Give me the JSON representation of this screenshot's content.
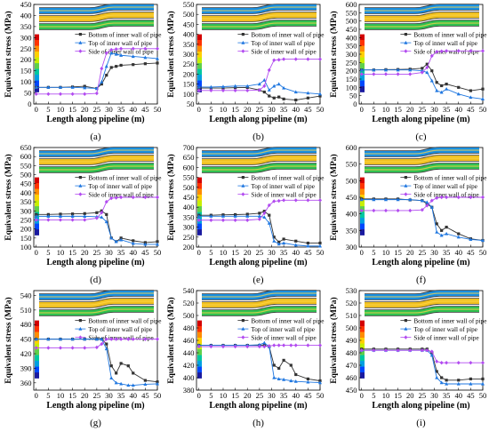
{
  "figure": {
    "series_names": [
      "Bottom of inner wall of pipe",
      "Top of inner wall of pipe",
      "Side of inner wall of pipe"
    ],
    "series_colors": [
      "#333333",
      "#1f77e0",
      "#b24bf0"
    ],
    "colorbar": [
      "#d40000",
      "#ff3300",
      "#ff8c00",
      "#ffd000",
      "#c8ef00",
      "#5fd04a",
      "#00c8a0",
      "#00a0e0",
      "#0048ff",
      "#1a1aa0"
    ]
  },
  "chart_data": [
    {
      "type": "line",
      "panel_label": "(a)",
      "xlabel": "Length along pipeline (m)",
      "ylabel": "Equivalent stress (MPa)",
      "xlim": [
        -1,
        50
      ],
      "ylim": [
        0,
        450
      ],
      "xticks": [
        0,
        5,
        10,
        15,
        20,
        25,
        30,
        35,
        40,
        45,
        50
      ],
      "yticks": [
        0,
        50,
        100,
        150,
        200,
        250,
        300,
        350,
        400,
        450
      ],
      "x": [
        0,
        5,
        10,
        15,
        20,
        25,
        27,
        29,
        31,
        33,
        35,
        40,
        45,
        50
      ],
      "series": [
        {
          "name": "Bottom of inner wall of pipe",
          "values": [
            75,
            75,
            75,
            77,
            80,
            70,
            90,
            130,
            165,
            170,
            175,
            178,
            182,
            185
          ]
        },
        {
          "name": "Top of inner wall of pipe",
          "values": [
            75,
            75,
            75,
            75,
            73,
            70,
            100,
            170,
            230,
            225,
            220,
            215,
            210,
            205
          ]
        },
        {
          "name": "Side of inner wall of pipe",
          "values": [
            45,
            45,
            45,
            45,
            45,
            48,
            160,
            230,
            245,
            248,
            250,
            250,
            250,
            250
          ]
        }
      ]
    },
    {
      "type": "line",
      "panel_label": "(b)",
      "xlabel": "Length along pipeline (m)",
      "ylabel": "Equivalent stress (MPa)",
      "xlim": [
        -1,
        50
      ],
      "ylim": [
        50,
        550
      ],
      "xticks": [
        0,
        5,
        10,
        15,
        20,
        25,
        30,
        35,
        40,
        45,
        50
      ],
      "yticks": [
        50,
        100,
        150,
        200,
        250,
        300,
        350,
        400,
        450,
        500,
        550
      ],
      "x": [
        0,
        5,
        10,
        15,
        20,
        25,
        27,
        29,
        31,
        33,
        35,
        40,
        45,
        50
      ],
      "series": [
        {
          "name": "Bottom of inner wall of pipe",
          "values": [
            130,
            130,
            130,
            132,
            133,
            120,
            110,
            90,
            80,
            85,
            75,
            70,
            80,
            90
          ]
        },
        {
          "name": "Top of inner wall of pipe",
          "values": [
            135,
            135,
            137,
            140,
            140,
            150,
            170,
            120,
            140,
            150,
            130,
            110,
            105,
            100
          ]
        },
        {
          "name": "Side of inner wall of pipe",
          "values": [
            118,
            118,
            118,
            118,
            118,
            120,
            140,
            220,
            270,
            272,
            275,
            275,
            275,
            275
          ]
        }
      ]
    },
    {
      "type": "line",
      "panel_label": "(c)",
      "xlabel": "Length along pipeline (m)",
      "ylabel": "Equivalent stress (MPa)",
      "xlim": [
        -1,
        50
      ],
      "ylim": [
        0,
        600
      ],
      "xticks": [
        0,
        5,
        10,
        15,
        20,
        25,
        30,
        35,
        40,
        45,
        50
      ],
      "yticks": [
        0,
        50,
        100,
        150,
        200,
        250,
        300,
        350,
        400,
        450,
        500,
        550,
        600
      ],
      "x": [
        0,
        5,
        10,
        15,
        20,
        25,
        27,
        29,
        31,
        33,
        35,
        40,
        45,
        50
      ],
      "series": [
        {
          "name": "Bottom of inner wall of pipe",
          "values": [
            205,
            205,
            207,
            208,
            210,
            215,
            240,
            200,
            130,
            110,
            120,
            100,
            80,
            90
          ]
        },
        {
          "name": "Top of inner wall of pipe",
          "values": [
            205,
            205,
            205,
            205,
            205,
            200,
            190,
            140,
            80,
            70,
            90,
            60,
            40,
            30
          ]
        },
        {
          "name": "Side of inner wall of pipe",
          "values": [
            180,
            180,
            180,
            180,
            180,
            190,
            220,
            290,
            315,
            318,
            320,
            320,
            320,
            320
          ]
        }
      ]
    },
    {
      "type": "line",
      "panel_label": "(d)",
      "xlabel": "Length along pipeline (m)",
      "ylabel": "Equivalent stress (MPa)",
      "xlim": [
        -1,
        50
      ],
      "ylim": [
        100,
        650
      ],
      "xticks": [
        0,
        5,
        10,
        15,
        20,
        25,
        30,
        35,
        40,
        45,
        50
      ],
      "yticks": [
        100,
        150,
        200,
        250,
        300,
        350,
        400,
        450,
        500,
        550,
        600,
        650
      ],
      "x": [
        0,
        5,
        10,
        15,
        20,
        25,
        27,
        29,
        31,
        33,
        35,
        40,
        45,
        50
      ],
      "series": [
        {
          "name": "Bottom of inner wall of pipe",
          "values": [
            280,
            280,
            282,
            283,
            285,
            290,
            300,
            280,
            150,
            130,
            150,
            135,
            125,
            130
          ]
        },
        {
          "name": "Top of inner wall of pipe",
          "values": [
            270,
            270,
            270,
            270,
            270,
            268,
            265,
            240,
            150,
            130,
            140,
            120,
            115,
            115
          ]
        },
        {
          "name": "Side of inner wall of pipe",
          "values": [
            250,
            250,
            250,
            250,
            250,
            260,
            290,
            350,
            370,
            372,
            375,
            375,
            375,
            375
          ]
        }
      ]
    },
    {
      "type": "line",
      "panel_label": "(e)",
      "xlabel": "Length along pipeline (m)",
      "ylabel": "Equivalent stress (MPa)",
      "xlim": [
        -1,
        50
      ],
      "ylim": [
        200,
        700
      ],
      "xticks": [
        0,
        5,
        10,
        15,
        20,
        25,
        30,
        35,
        40,
        45,
        50
      ],
      "yticks": [
        200,
        250,
        300,
        350,
        400,
        450,
        500,
        550,
        600,
        650,
        700
      ],
      "x": [
        0,
        5,
        10,
        15,
        20,
        25,
        27,
        29,
        31,
        33,
        35,
        40,
        45,
        50
      ],
      "series": [
        {
          "name": "Bottom of inner wall of pipe",
          "values": [
            360,
            360,
            362,
            363,
            365,
            370,
            380,
            360,
            250,
            225,
            240,
            230,
            220,
            220
          ]
        },
        {
          "name": "Top of inner wall of pipe",
          "values": [
            355,
            355,
            355,
            355,
            355,
            355,
            350,
            320,
            230,
            215,
            220,
            210,
            205,
            205
          ]
        },
        {
          "name": "Side of inner wall of pipe",
          "values": [
            335,
            335,
            335,
            335,
            335,
            340,
            370,
            410,
            430,
            432,
            435,
            435,
            435,
            435
          ]
        }
      ]
    },
    {
      "type": "line",
      "panel_label": "(f)",
      "xlabel": "Length along pipeline (m)",
      "ylabel": "Equivalent stress (MPa)",
      "xlim": [
        -1,
        50
      ],
      "ylim": [
        300,
        600
      ],
      "xticks": [
        0,
        5,
        10,
        15,
        20,
        25,
        30,
        35,
        40,
        45,
        50
      ],
      "yticks": [
        300,
        350,
        400,
        450,
        500,
        550,
        600
      ],
      "x": [
        0,
        5,
        10,
        15,
        20,
        25,
        27,
        29,
        31,
        33,
        35,
        40,
        45,
        50
      ],
      "series": [
        {
          "name": "Bottom of inner wall of pipe",
          "values": [
            445,
            445,
            445,
            445,
            442,
            440,
            430,
            420,
            370,
            350,
            360,
            340,
            325,
            320
          ]
        },
        {
          "name": "Top of inner wall of pipe",
          "values": [
            443,
            443,
            443,
            443,
            443,
            440,
            435,
            420,
            345,
            335,
            340,
            330,
            323,
            320
          ]
        },
        {
          "name": "Side of inner wall of pipe",
          "values": [
            410,
            410,
            410,
            410,
            410,
            412,
            425,
            440,
            448,
            450,
            450,
            450,
            450,
            450
          ]
        }
      ]
    },
    {
      "type": "line",
      "panel_label": "(g)",
      "xlabel": "Length along pipeline (m)",
      "ylabel": "Equivalent stress (MPa)",
      "xlim": [
        -1,
        50
      ],
      "ylim": [
        345,
        550
      ],
      "xticks": [
        0,
        5,
        10,
        15,
        20,
        25,
        30,
        35,
        40,
        45,
        50
      ],
      "yticks": [
        360,
        390,
        420,
        450,
        480,
        510,
        540
      ],
      "x": [
        0,
        5,
        10,
        15,
        20,
        25,
        27,
        29,
        31,
        33,
        35,
        38,
        40,
        45,
        50
      ],
      "series": [
        {
          "name": "Bottom of inner wall of pipe",
          "values": [
            450,
            450,
            450,
            450,
            450,
            450,
            450,
            440,
            395,
            380,
            400,
            395,
            380,
            365,
            362
          ]
        },
        {
          "name": "Top of inner wall of pipe",
          "values": [
            450,
            450,
            450,
            450,
            450,
            450,
            450,
            430,
            370,
            360,
            358,
            355,
            355,
            357,
            358
          ]
        },
        {
          "name": "Side of inner wall of pipe",
          "values": [
            432,
            432,
            432,
            432,
            432,
            433,
            440,
            450,
            450,
            450,
            450,
            450,
            450,
            450,
            450
          ]
        }
      ]
    },
    {
      "type": "line",
      "panel_label": "(h)",
      "xlabel": "Length along pipeline (m)",
      "ylabel": "Equivalent stress (MPa)",
      "xlim": [
        -1,
        50
      ],
      "ylim": [
        380,
        540
      ],
      "xticks": [
        0,
        5,
        10,
        15,
        20,
        25,
        30,
        35,
        40,
        45,
        50
      ],
      "yticks": [
        380,
        400,
        420,
        440,
        460,
        480,
        500,
        520,
        540
      ],
      "x": [
        0,
        5,
        10,
        15,
        20,
        25,
        27,
        29,
        31,
        33,
        35,
        38,
        40,
        45,
        50
      ],
      "series": [
        {
          "name": "Bottom of inner wall of pipe",
          "values": [
            452,
            452,
            452,
            452,
            452,
            452,
            452,
            450,
            420,
            415,
            428,
            420,
            405,
            398,
            395
          ]
        },
        {
          "name": "Top of inner wall of pipe",
          "values": [
            452,
            452,
            452,
            452,
            452,
            453,
            456,
            450,
            400,
            398,
            397,
            395,
            394,
            393,
            392
          ]
        },
        {
          "name": "Side of inner wall of pipe",
          "values": [
            450,
            450,
            450,
            450,
            450,
            450,
            450,
            451,
            452,
            452,
            452,
            452,
            452,
            452,
            452
          ]
        }
      ]
    },
    {
      "type": "line",
      "panel_label": "(i)",
      "xlabel": "Length along pipeline (m)",
      "ylabel": "Equivalent stress (MPa)",
      "xlim": [
        -1,
        50
      ],
      "ylim": [
        450,
        530
      ],
      "xticks": [
        0,
        5,
        10,
        15,
        20,
        25,
        30,
        35,
        40,
        45,
        50
      ],
      "yticks": [
        450,
        460,
        470,
        480,
        490,
        500,
        510,
        520,
        530
      ],
      "x": [
        0,
        5,
        10,
        15,
        20,
        25,
        27,
        29,
        31,
        33,
        35,
        40,
        45,
        50
      ],
      "series": [
        {
          "name": "Bottom of inner wall of pipe",
          "values": [
            483,
            483,
            483,
            483,
            483,
            483,
            483,
            480,
            465,
            460,
            458,
            458,
            459,
            459
          ]
        },
        {
          "name": "Top of inner wall of pipe",
          "values": [
            482,
            482,
            482,
            482,
            482,
            482,
            482,
            478,
            460,
            456,
            455,
            455,
            455,
            455
          ]
        },
        {
          "name": "Side of inner wall of pipe",
          "values": [
            482,
            482,
            482,
            482,
            482,
            482,
            482,
            481,
            473,
            472,
            472,
            472,
            472,
            472
          ]
        }
      ]
    }
  ]
}
